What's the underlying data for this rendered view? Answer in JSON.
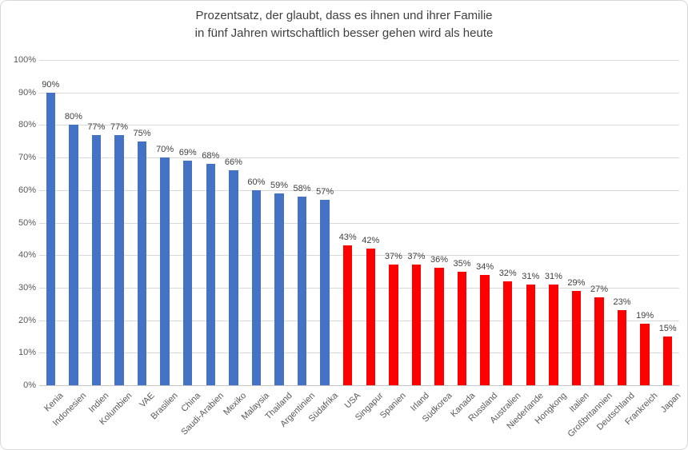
{
  "title": {
    "line1": "Prozentsatz, der glaubt, dass es ihnen und ihrer Familie",
    "line2": "in fünf Jahren wirtschaftlich besser gehen wird als heute"
  },
  "colors": {
    "optimistic_bar": "#4472C4",
    "pessimistic_bar": "#FF0000",
    "gridline": "#D9D9D9",
    "axis_line": "#C6C6C6",
    "tick_text": "#595959",
    "value_text": "#404040",
    "title_text": "#404040",
    "border": "#D9D9D9"
  },
  "chart_data": {
    "type": "bar",
    "title": "Prozentsatz, der glaubt, dass es ihnen und ihrer Familie in fünf Jahren wirtschaftlich besser gehen wird als heute",
    "categories": [
      "Kenia",
      "Indonesien",
      "Indien",
      "Kolumbien",
      "VAE",
      "Brasilien",
      "China",
      "Saudi-Arabien",
      "Mexiko",
      "Malaysia",
      "Thailand",
      "Argentinien",
      "Südafrika",
      "USA",
      "Singapur",
      "Spanien",
      "Irland",
      "Südkorea",
      "Kanada",
      "Russland",
      "Australien",
      "Niederlande",
      "Hongkong",
      "Italien",
      "Großbritannien",
      "Deutschland",
      "Frankreich",
      "Japan"
    ],
    "values": [
      90,
      80,
      77,
      77,
      75,
      70,
      69,
      68,
      66,
      60,
      59,
      58,
      57,
      43,
      42,
      37,
      37,
      36,
      35,
      34,
      32,
      31,
      31,
      29,
      27,
      23,
      19,
      15
    ],
    "colors": [
      "#4472C4",
      "#4472C4",
      "#4472C4",
      "#4472C4",
      "#4472C4",
      "#4472C4",
      "#4472C4",
      "#4472C4",
      "#4472C4",
      "#4472C4",
      "#4472C4",
      "#4472C4",
      "#4472C4",
      "#FF0000",
      "#FF0000",
      "#FF0000",
      "#FF0000",
      "#FF0000",
      "#FF0000",
      "#FF0000",
      "#FF0000",
      "#FF0000",
      "#FF0000",
      "#FF0000",
      "#FF0000",
      "#FF0000",
      "#FF0000",
      "#FF0000"
    ],
    "value_suffix": "%",
    "xlabel": "",
    "ylabel": "",
    "ylim": [
      0,
      100
    ],
    "ytick_step": 10,
    "ytick_labels": [
      "0%",
      "10%",
      "20%",
      "30%",
      "40%",
      "50%",
      "60%",
      "70%",
      "80%",
      "90%",
      "100%"
    ],
    "grid": true,
    "legend": false,
    "x_label_rotation_deg": 45
  }
}
